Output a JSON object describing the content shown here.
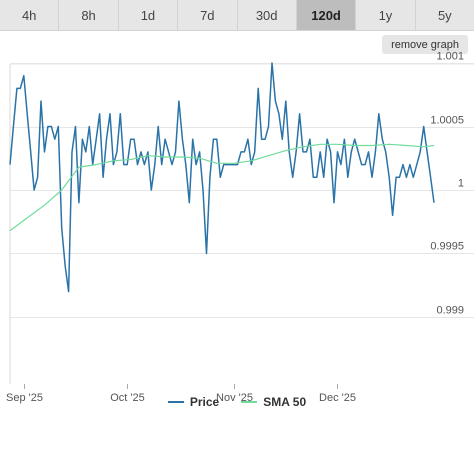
{
  "tabs": [
    {
      "label": "4h",
      "active": false
    },
    {
      "label": "8h",
      "active": false
    },
    {
      "label": "1d",
      "active": false
    },
    {
      "label": "7d",
      "active": false
    },
    {
      "label": "30d",
      "active": false
    },
    {
      "label": "120d",
      "active": true
    },
    {
      "label": "1y",
      "active": false
    },
    {
      "label": "5y",
      "active": false
    }
  ],
  "remove_graph_label": "remove graph",
  "colors": {
    "price": "#2a73a8",
    "sma": "#6fdc9a",
    "grid": "#e6e6e6"
  },
  "chart_data": {
    "type": "line",
    "yticks": [
      {
        "value": 1.001,
        "label": "1.001"
      },
      {
        "value": 1.0005,
        "label": "1.0005"
      },
      {
        "value": 1.0,
        "label": "1"
      },
      {
        "value": 0.9995,
        "label": "0.9995"
      },
      {
        "value": 0.999,
        "label": "0.999"
      }
    ],
    "ylim": [
      0.999,
      1.001
    ],
    "xlim": [
      "2025-08-28",
      "2025-12-29"
    ],
    "xticks": [
      {
        "date": "2025-09-01",
        "label": "Sep '25"
      },
      {
        "date": "2025-10-01",
        "label": "Oct '25"
      },
      {
        "date": "2025-11-01",
        "label": "Nov '25"
      },
      {
        "date": "2025-12-01",
        "label": "Dec '25"
      }
    ],
    "series": [
      {
        "name": "Price",
        "x": [
          "2025-08-28",
          "2025-08-29",
          "2025-08-30",
          "2025-08-31",
          "2025-09-01",
          "2025-09-02",
          "2025-09-03",
          "2025-09-04",
          "2025-09-05",
          "2025-09-06",
          "2025-09-07",
          "2025-09-08",
          "2025-09-09",
          "2025-09-10",
          "2025-09-11",
          "2025-09-12",
          "2025-09-13",
          "2025-09-14",
          "2025-09-15",
          "2025-09-16",
          "2025-09-17",
          "2025-09-18",
          "2025-09-19",
          "2025-09-20",
          "2025-09-21",
          "2025-09-22",
          "2025-09-23",
          "2025-09-24",
          "2025-09-25",
          "2025-09-26",
          "2025-09-27",
          "2025-09-28",
          "2025-09-29",
          "2025-09-30",
          "2025-10-01",
          "2025-10-02",
          "2025-10-03",
          "2025-10-04",
          "2025-10-05",
          "2025-10-06",
          "2025-10-07",
          "2025-10-08",
          "2025-10-09",
          "2025-10-10",
          "2025-10-11",
          "2025-10-12",
          "2025-10-13",
          "2025-10-14",
          "2025-10-15",
          "2025-10-16",
          "2025-10-17",
          "2025-10-18",
          "2025-10-19",
          "2025-10-20",
          "2025-10-21",
          "2025-10-22",
          "2025-10-23",
          "2025-10-24",
          "2025-10-25",
          "2025-10-26",
          "2025-10-27",
          "2025-10-28",
          "2025-10-29",
          "2025-10-30",
          "2025-10-31",
          "2025-11-01",
          "2025-11-02",
          "2025-11-03",
          "2025-11-04",
          "2025-11-05",
          "2025-11-06",
          "2025-11-07",
          "2025-11-08",
          "2025-11-09",
          "2025-11-10",
          "2025-11-11",
          "2025-11-12",
          "2025-11-13",
          "2025-11-14",
          "2025-11-15",
          "2025-11-16",
          "2025-11-17",
          "2025-11-18",
          "2025-11-19",
          "2025-11-20",
          "2025-11-21",
          "2025-11-22",
          "2025-11-23",
          "2025-11-24",
          "2025-11-25",
          "2025-11-26",
          "2025-11-27",
          "2025-11-28",
          "2025-11-29",
          "2025-11-30",
          "2025-12-01",
          "2025-12-02",
          "2025-12-03",
          "2025-12-04",
          "2025-12-05",
          "2025-12-06",
          "2025-12-07",
          "2025-12-08",
          "2025-12-09",
          "2025-12-10",
          "2025-12-11",
          "2025-12-12",
          "2025-12-13",
          "2025-12-14",
          "2025-12-15",
          "2025-12-16",
          "2025-12-17",
          "2025-12-18",
          "2025-12-19",
          "2025-12-20",
          "2025-12-21",
          "2025-12-22",
          "2025-12-23",
          "2025-12-24",
          "2025-12-25",
          "2025-12-26",
          "2025-12-27",
          "2025-12-28",
          "2025-12-29"
        ],
        "values": [
          1.0002,
          1.0005,
          1.0008,
          1.0008,
          1.0009,
          1.0006,
          1.0003,
          1.0,
          1.0001,
          1.0007,
          1.0003,
          1.0005,
          1.0005,
          1.0004,
          1.0005,
          0.9997,
          0.9994,
          0.9992,
          1.0003,
          1.0005,
          0.9999,
          1.0004,
          1.0003,
          1.0005,
          1.0002,
          1.0004,
          1.0006,
          1.0001,
          1.0004,
          1.0006,
          1.0002,
          1.0003,
          1.0006,
          1.0002,
          1.0002,
          1.0004,
          1.0004,
          1.0002,
          1.0003,
          1.0002,
          1.0003,
          1.0,
          1.0002,
          1.0005,
          1.0002,
          1.0004,
          1.0003,
          1.0002,
          1.0003,
          1.0007,
          1.0004,
          1.0002,
          0.9999,
          1.0004,
          1.0002,
          1.0003,
          1.0,
          0.9995,
          1.0001,
          1.0004,
          1.0004,
          1.0001,
          1.0002,
          1.0002,
          1.0002,
          1.0002,
          1.0002,
          1.0003,
          1.0003,
          1.0004,
          1.0002,
          1.0003,
          1.0008,
          1.0004,
          1.0004,
          1.0005,
          1.001,
          1.0007,
          1.0006,
          1.0004,
          1.0007,
          1.0003,
          1.0001,
          1.0003,
          1.0006,
          1.0003,
          1.0003,
          1.0004,
          1.0001,
          1.0001,
          1.0003,
          1.0001,
          1.0004,
          1.0003,
          0.9999,
          1.0003,
          1.0002,
          1.0004,
          1.0001,
          1.0003,
          1.0004,
          1.0003,
          1.0002,
          1.0002,
          1.0003,
          1.0001,
          1.0003,
          1.0006,
          1.0004,
          1.0003,
          1.0001,
          0.9998,
          1.0001,
          1.0001,
          1.0002,
          1.0001,
          1.0002,
          1.0001,
          1.0002,
          1.0003,
          1.0005,
          1.0003,
          1.0001,
          0.9999
        ]
      },
      {
        "name": "SMA 50",
        "x": [
          "2025-08-28",
          "2025-09-02",
          "2025-09-07",
          "2025-09-12",
          "2025-09-17",
          "2025-09-22",
          "2025-09-27",
          "2025-10-02",
          "2025-10-07",
          "2025-10-12",
          "2025-10-17",
          "2025-10-22",
          "2025-10-27",
          "2025-11-01",
          "2025-11-06",
          "2025-11-11",
          "2025-11-16",
          "2025-11-21",
          "2025-11-26",
          "2025-12-01",
          "2025-12-06",
          "2025-12-11",
          "2025-12-16",
          "2025-12-21",
          "2025-12-26",
          "2025-12-29"
        ],
        "values": [
          0.99968,
          0.99978,
          0.99988,
          1.0,
          1.00018,
          1.0002,
          1.00023,
          1.00024,
          1.00027,
          1.00026,
          1.00026,
          1.00025,
          1.00021,
          1.00021,
          1.00023,
          1.00027,
          1.00031,
          1.00034,
          1.00036,
          1.00036,
          1.00035,
          1.00035,
          1.00036,
          1.00035,
          1.00034,
          1.00035
        ]
      }
    ]
  }
}
